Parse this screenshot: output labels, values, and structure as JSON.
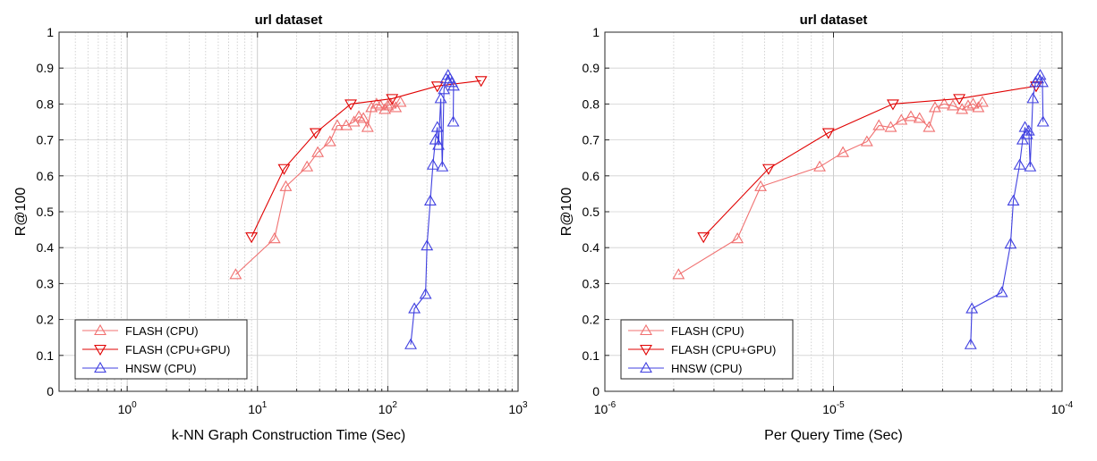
{
  "chart_data": [
    {
      "type": "line",
      "title": "url dataset",
      "xlabel": "k-NN Graph Construction Time (Sec)",
      "ylabel": "R@100",
      "xscale": "log",
      "xlim": [
        0.3,
        1000
      ],
      "ylim": [
        0,
        1
      ],
      "xticks": [
        1,
        10,
        100,
        1000
      ],
      "xtick_labels": [
        {
          "base": "10",
          "exp": "0"
        },
        {
          "base": "10",
          "exp": "1"
        },
        {
          "base": "10",
          "exp": "2"
        },
        {
          "base": "10",
          "exp": "3"
        }
      ],
      "yticks": [
        0,
        0.1,
        0.2,
        0.3,
        0.4,
        0.5,
        0.6,
        0.7,
        0.8,
        0.9,
        1
      ],
      "ytick_labels": [
        "0",
        "0.1",
        "0.2",
        "0.3",
        "0.4",
        "0.5",
        "0.6",
        "0.7",
        "0.8",
        "0.9",
        "1"
      ],
      "grid": true,
      "legend_position": "bottom-left",
      "series": [
        {
          "name": "FLASH (CPU)",
          "color": "#f07070",
          "marker": "triangle-up",
          "x": [
            6.8,
            13.5,
            16.5,
            24,
            29,
            36,
            41,
            48,
            55,
            60,
            65,
            70,
            75,
            82,
            88,
            95,
            100,
            105,
            115,
            125
          ],
          "y": [
            0.325,
            0.425,
            0.57,
            0.625,
            0.665,
            0.695,
            0.74,
            0.74,
            0.75,
            0.765,
            0.76,
            0.735,
            0.79,
            0.8,
            0.795,
            0.785,
            0.795,
            0.8,
            0.79,
            0.805
          ]
        },
        {
          "name": "FLASH (CPU+GPU)",
          "color": "#e00000",
          "marker": "triangle-down",
          "x": [
            9,
            16,
            28,
            52,
            108,
            240,
            520
          ],
          "y": [
            0.43,
            0.62,
            0.72,
            0.8,
            0.815,
            0.85,
            0.865
          ]
        },
        {
          "name": "HNSW (CPU)",
          "color": "#4040e0",
          "marker": "triangle-up",
          "x": [
            150,
            160,
            195,
            200,
            212,
            222,
            232,
            240,
            245,
            255,
            262,
            270,
            280,
            290,
            300,
            310,
            320,
            318
          ],
          "y": [
            0.13,
            0.23,
            0.27,
            0.405,
            0.53,
            0.63,
            0.7,
            0.735,
            0.685,
            0.815,
            0.625,
            0.84,
            0.87,
            0.88,
            0.87,
            0.86,
            0.85,
            0.75
          ]
        }
      ]
    },
    {
      "type": "line",
      "title": "url dataset",
      "xlabel": "Per Query Time (Sec)",
      "ylabel": "R@100",
      "xscale": "log",
      "xlim": [
        1e-06,
        0.0001
      ],
      "ylim": [
        0,
        1
      ],
      "xticks": [
        1e-06,
        1e-05,
        0.0001
      ],
      "xtick_labels": [
        {
          "base": "10",
          "exp": "-6"
        },
        {
          "base": "10",
          "exp": "-5"
        },
        {
          "base": "10",
          "exp": "-4"
        }
      ],
      "yticks": [
        0,
        0.1,
        0.2,
        0.3,
        0.4,
        0.5,
        0.6,
        0.7,
        0.8,
        0.9,
        1
      ],
      "ytick_labels": [
        "0",
        "0.1",
        "0.2",
        "0.3",
        "0.4",
        "0.5",
        "0.6",
        "0.7",
        "0.8",
        "0.9",
        "1"
      ],
      "grid": true,
      "legend_position": "bottom-left",
      "series": [
        {
          "name": "FLASH (CPU)",
          "color": "#f07070",
          "marker": "triangle-up",
          "x": [
            2.1e-06,
            3.8e-06,
            4.8e-06,
            8.7e-06,
            1.1e-05,
            1.4e-05,
            1.58e-05,
            1.78e-05,
            1.98e-05,
            2.18e-05,
            2.38e-05,
            2.62e-05,
            2.78e-05,
            3.05e-05,
            3.33e-05,
            3.65e-05,
            3.88e-05,
            4.08e-05,
            4.3e-05,
            4.48e-05
          ],
          "y": [
            0.325,
            0.425,
            0.57,
            0.625,
            0.665,
            0.695,
            0.74,
            0.735,
            0.755,
            0.765,
            0.76,
            0.735,
            0.79,
            0.8,
            0.795,
            0.785,
            0.795,
            0.8,
            0.79,
            0.805
          ]
        },
        {
          "name": "FLASH (CPU+GPU)",
          "color": "#e00000",
          "marker": "triangle-down",
          "x": [
            2.7e-06,
            5.2e-06,
            9.5e-06,
            1.82e-05,
            3.55e-05,
            7.7e-05
          ],
          "y": [
            0.43,
            0.62,
            0.72,
            0.8,
            0.815,
            0.85
          ]
        },
        {
          "name": "HNSW (CPU)",
          "color": "#4040e0",
          "marker": "triangle-up",
          "x": [
            3.98e-05,
            4.03e-05,
            5.45e-05,
            5.95e-05,
            6.12e-05,
            6.52e-05,
            6.72e-05,
            6.88e-05,
            7.02e-05,
            7.15e-05,
            7.25e-05,
            7.45e-05,
            7.65e-05,
            7.85e-05,
            8.02e-05,
            8.2e-05,
            8.25e-05
          ],
          "y": [
            0.13,
            0.23,
            0.275,
            0.41,
            0.53,
            0.63,
            0.7,
            0.735,
            0.715,
            0.725,
            0.625,
            0.815,
            0.86,
            0.87,
            0.88,
            0.86,
            0.75
          ]
        }
      ]
    }
  ]
}
